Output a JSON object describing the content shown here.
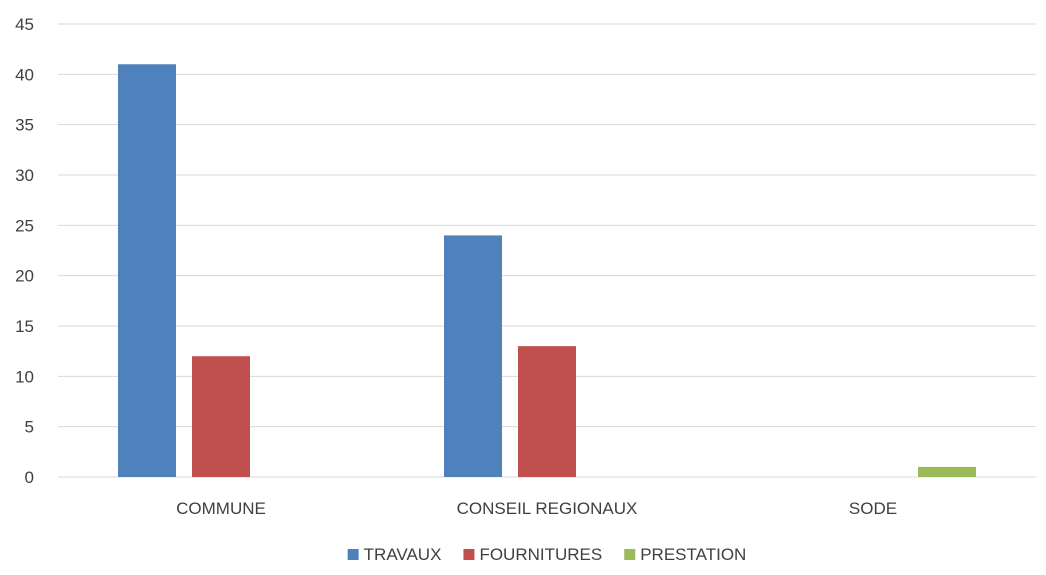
{
  "chart_data": {
    "type": "bar",
    "categories": [
      "COMMUNE",
      "CONSEIL REGIONAUX",
      "SODE"
    ],
    "series": [
      {
        "name": "TRAVAUX",
        "color": "#4F81BD",
        "values": [
          41,
          24,
          0
        ]
      },
      {
        "name": "FOURNITURES",
        "color": "#C0504D",
        "values": [
          12,
          13,
          0
        ]
      },
      {
        "name": "PRESTATION",
        "color": "#9BBB59",
        "values": [
          0,
          0,
          1
        ]
      }
    ],
    "ylim": [
      0,
      45
    ],
    "yticks": [
      0,
      5,
      10,
      15,
      20,
      25,
      30,
      35,
      40,
      45
    ],
    "grid": true,
    "legend_position": "bottom",
    "gridline_color": "#D9D9D9",
    "axis_line_color": "#D9D9D9",
    "text_color": "#404040"
  }
}
